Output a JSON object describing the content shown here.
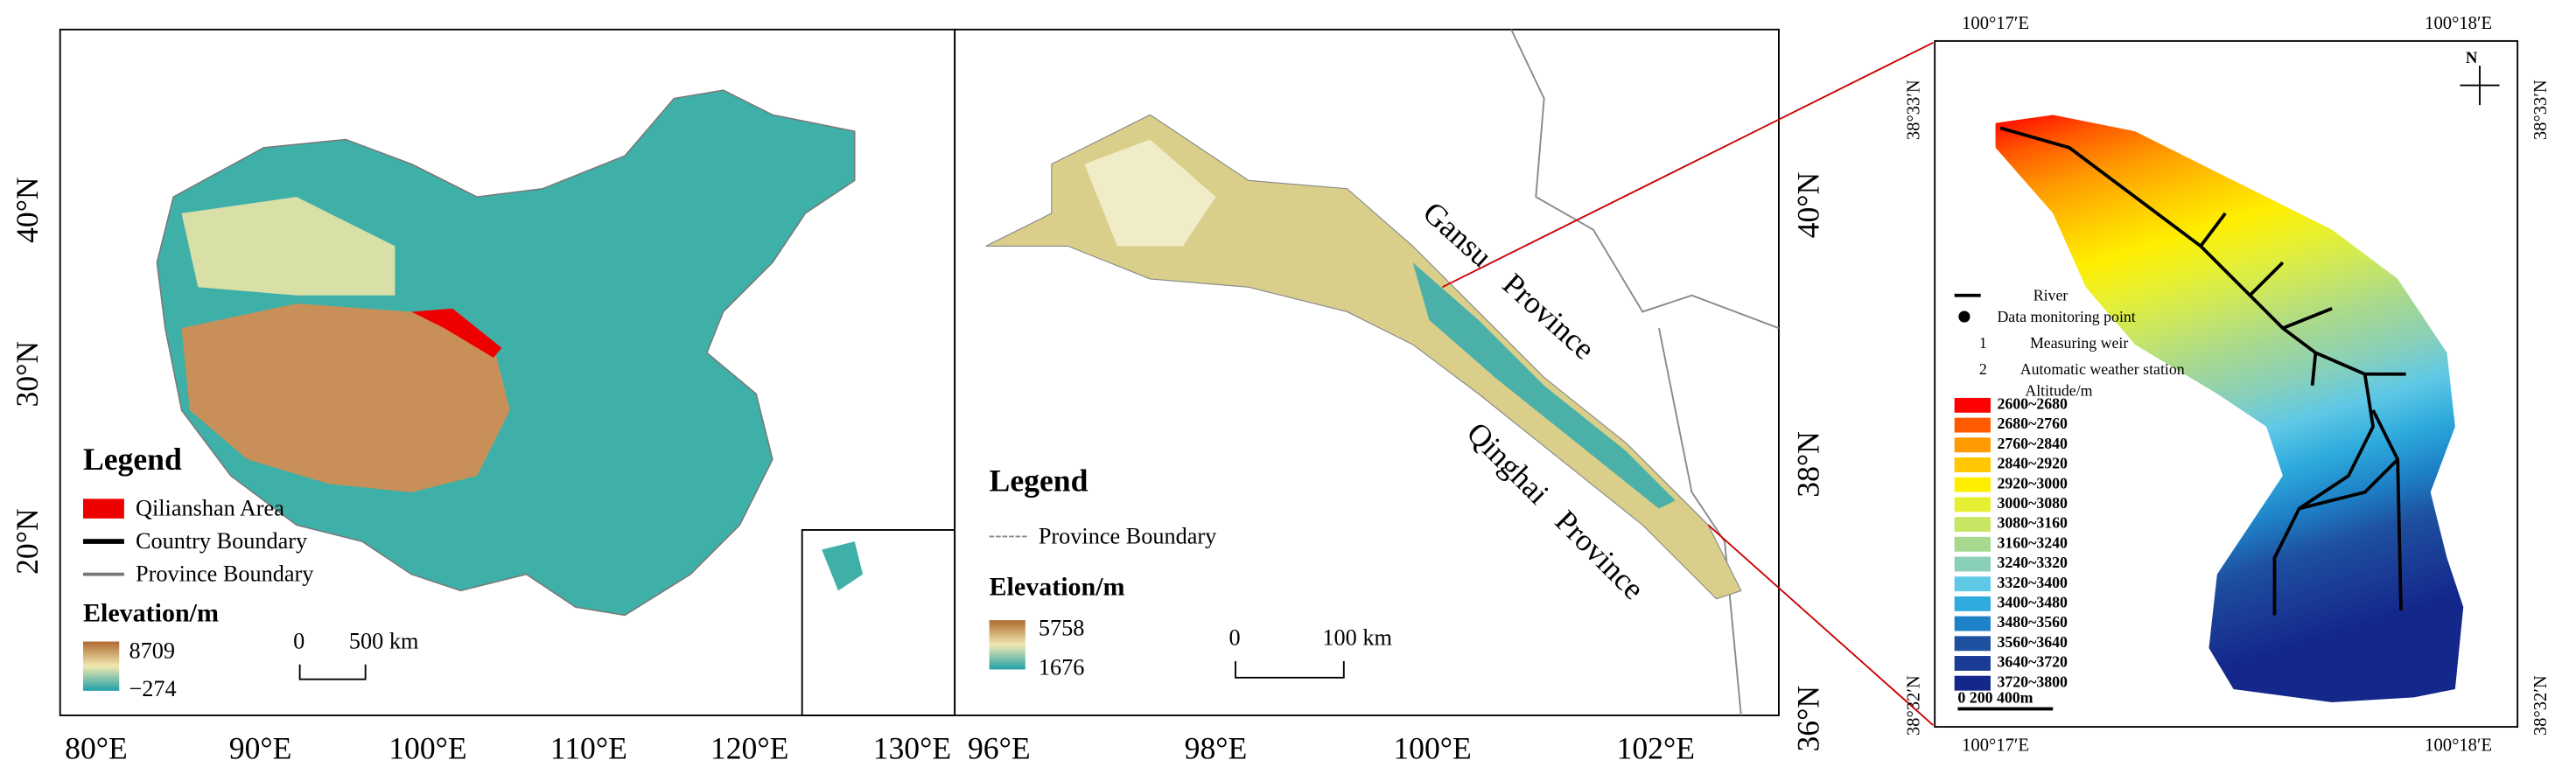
{
  "panel_china": {
    "x_labels": [
      "80°E",
      "90°E",
      "100°E",
      "110°E",
      "120°E",
      "130°E"
    ],
    "y_labels": [
      "40°N",
      "30°N",
      "20°N"
    ],
    "legend_title": "Legend",
    "legend_items": [
      "Qilianshan Area",
      "Country Boundary",
      "Province Boundary"
    ],
    "elevation_title": "Elevation/m",
    "elevation_max": "8709",
    "elevation_min": "−274",
    "scale_zero": "0",
    "scale_label": "500 km"
  },
  "panel_qilian": {
    "x_labels": [
      "96°E",
      "98°E",
      "100°E",
      "102°E"
    ],
    "y_labels": [
      "40°N",
      "38°N",
      "36°N"
    ],
    "gansu_label": "Gansu   Province",
    "qinghai_label": "Qinghai  Province",
    "legend_title": "Legend",
    "legend_items": [
      "Province Boundary"
    ],
    "elevation_title": "Elevation/m",
    "elevation_max": "5758",
    "elevation_min": "1676",
    "scale_zero": "0",
    "scale_label": "100 km"
  },
  "panel_basin": {
    "top_labels": [
      "100°17′E",
      "100°18′E"
    ],
    "bottom_labels": [
      "100°17′E",
      "100°18′E"
    ],
    "left_labels": [
      "38°33′N",
      "38°32′N"
    ],
    "right_labels": [
      "38°33′N",
      "38°32′N"
    ],
    "north": "N",
    "legend": {
      "river": "River",
      "monitoring_point": "Data monitoring point",
      "weir_number": "1",
      "weir": "Measuring weir",
      "station_number": "2",
      "station": "Automatic weather station",
      "altitude_title": "Altitude/m"
    },
    "altitude_classes": [
      {
        "label": "2600~2680",
        "color": "#ff0000"
      },
      {
        "label": "2680~2760",
        "color": "#ff5a00"
      },
      {
        "label": "2760~2840",
        "color": "#ff9a00"
      },
      {
        "label": "2840~2920",
        "color": "#ffc800"
      },
      {
        "label": "2920~3000",
        "color": "#ffee00"
      },
      {
        "label": "3000~3080",
        "color": "#e6f032"
      },
      {
        "label": "3080~3160",
        "color": "#c8e664"
      },
      {
        "label": "3160~3240",
        "color": "#a6d890"
      },
      {
        "label": "3240~3320",
        "color": "#8ad0b8"
      },
      {
        "label": "3320~3400",
        "color": "#5ec8e6"
      },
      {
        "label": "3400~3480",
        "color": "#2eaadc"
      },
      {
        "label": "3480~3560",
        "color": "#1e82c8"
      },
      {
        "label": "3560~3640",
        "color": "#1e50a0"
      },
      {
        "label": "3640~3720",
        "color": "#1a3c96"
      },
      {
        "label": "3720~3800",
        "color": "#14288c"
      }
    ],
    "scale_label": "0  200   400m"
  }
}
